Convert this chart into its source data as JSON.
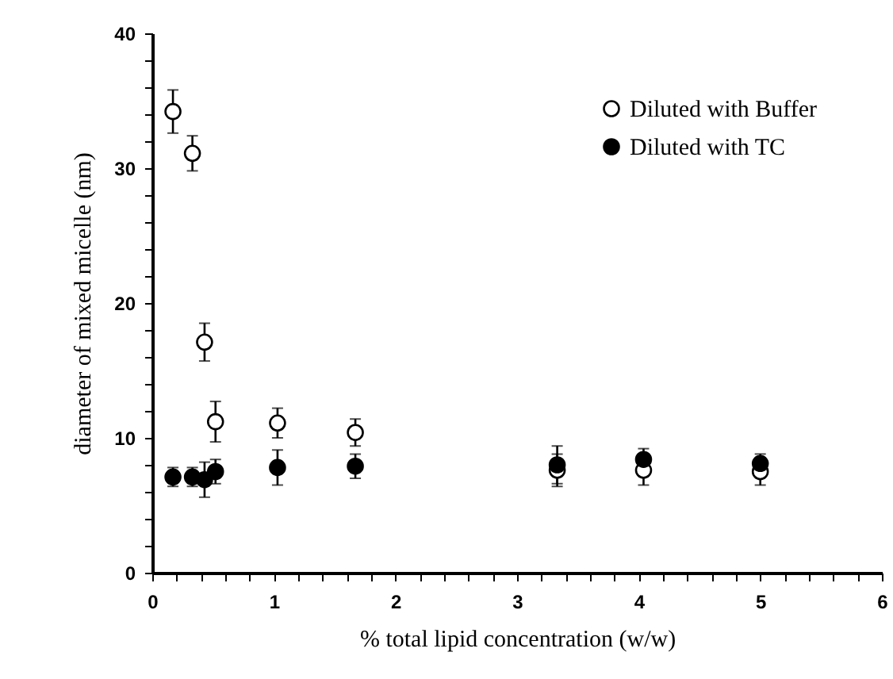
{
  "chart_data": {
    "type": "scatter",
    "xlabel": "% total lipid concentration (w/w)",
    "ylabel": "diameter of mixed micelle (nm)",
    "x": [
      0.17,
      0.33,
      0.43,
      0.52,
      1.03,
      1.67,
      3.33,
      4.04,
      5.0
    ],
    "series": [
      {
        "name": "Diluted with Buffer",
        "color": "#ffffff",
        "values": [
          34.2,
          31.1,
          17.1,
          11.2,
          11.1,
          10.4,
          7.6,
          7.6,
          7.5
        ],
        "errors": [
          1.6,
          1.3,
          1.4,
          1.5,
          1.1,
          1.0,
          1.2,
          1.1,
          1.0
        ]
      },
      {
        "name": "Diluted with TC",
        "color": "#000000",
        "values": [
          7.1,
          7.1,
          6.9,
          7.5,
          7.8,
          7.9,
          8.0,
          8.4,
          8.1
        ],
        "errors": [
          0.7,
          0.7,
          1.3,
          0.9,
          1.3,
          0.9,
          1.4,
          0.8,
          0.7
        ]
      }
    ],
    "xlim": [
      0,
      6
    ],
    "ylim": [
      0,
      40
    ],
    "xticks": [
      0,
      {
        "value": 0.2,
        "label": null
      },
      {
        "value": 0.4,
        "label": null
      },
      {
        "value": 0.6,
        "label": null
      },
      {
        "value": 0.8,
        "label": null
      },
      1,
      {
        "value": 1.2,
        "label": null
      },
      {
        "value": 1.4,
        "label": null
      },
      {
        "value": 1.6,
        "label": null
      },
      {
        "value": 1.8,
        "label": null
      },
      2,
      {
        "value": 2.2,
        "label": null
      },
      {
        "value": 2.4,
        "label": null
      },
      {
        "value": 2.6,
        "label": null
      },
      {
        "value": 2.8,
        "label": null
      },
      3,
      {
        "value": 3.2,
        "label": null
      },
      {
        "value": 3.4,
        "label": null
      },
      {
        "value": 3.6,
        "label": null
      },
      {
        "value": 3.8,
        "label": null
      },
      4,
      {
        "value": 4.2,
        "label": null
      },
      {
        "value": 4.4,
        "label": null
      },
      {
        "value": 4.6,
        "label": null
      },
      {
        "value": 4.8,
        "label": null
      },
      5,
      {
        "value": 5.2,
        "label": null
      },
      {
        "value": 5.4,
        "label": null
      },
      {
        "value": 5.6,
        "label": null
      },
      {
        "value": 5.8,
        "label": null
      },
      6
    ],
    "yticks": [
      0,
      {
        "value": 2,
        "label": null
      },
      {
        "value": 4,
        "label": null
      },
      {
        "value": 6,
        "label": null
      },
      {
        "value": 8,
        "label": null
      },
      10,
      {
        "value": 12,
        "label": null
      },
      {
        "value": 14,
        "label": null
      },
      {
        "value": 16,
        "label": null
      },
      {
        "value": 18,
        "label": null
      },
      20,
      {
        "value": 22,
        "label": null
      },
      {
        "value": 24,
        "label": null
      },
      {
        "value": 26,
        "label": null
      },
      {
        "value": 28,
        "label": null
      },
      30,
      {
        "value": 32,
        "label": null
      },
      {
        "value": 34,
        "label": null
      },
      {
        "value": 36,
        "label": null
      },
      {
        "value": 38,
        "label": null
      },
      40
    ],
    "marker": "circle",
    "grid": false,
    "legend": "top right"
  }
}
